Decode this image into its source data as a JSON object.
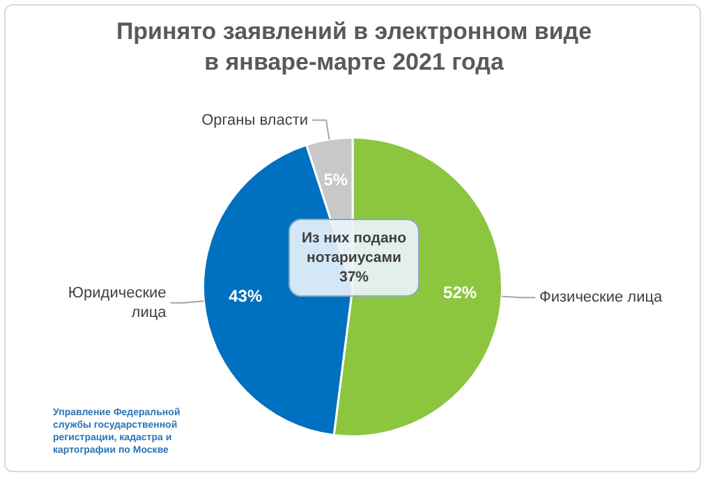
{
  "chart_data": {
    "type": "pie",
    "title": "Принято заявлений в электронном виде\nв январе-марте 2021 года",
    "categories": [
      "Физические лица",
      "Юридические лица",
      "Органы власти"
    ],
    "values": [
      52,
      43,
      5
    ],
    "colors": [
      "#8cc63f",
      "#0070c0",
      "#c8c8c8"
    ],
    "value_labels": [
      "52%",
      "43%",
      "5%"
    ],
    "annotations": [
      "Из них подано нотариусами 37%",
      "Управление Федеральной службы государственной регистрации, кадастра и картографии по Москве"
    ]
  }
}
